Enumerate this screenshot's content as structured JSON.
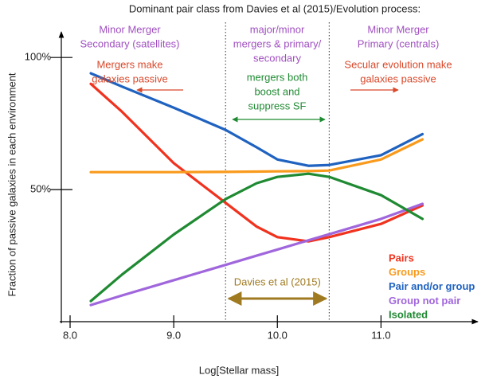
{
  "chart_data": {
    "type": "line",
    "title": "Dominant pair class from Davies et al (2015)/Evolution process:",
    "xlabel": "Log[Stellar mass]",
    "ylabel": "Fraction of passive galaxies in each environment",
    "x": [
      8.2,
      8.5,
      9.0,
      9.5,
      9.8,
      10.0,
      10.3,
      10.5,
      11.0,
      11.4
    ],
    "series": [
      {
        "name": "Pairs",
        "color": "#f0321e",
        "values": [
          90,
          79.5,
          60,
          45,
          36,
          32,
          30.4,
          32,
          37,
          44
        ]
      },
      {
        "name": "Groups",
        "color": "#f99a1c",
        "values": [
          56.6,
          56.6,
          56.6,
          56.7,
          56.8,
          56.9,
          57,
          57.2,
          61.4,
          69
        ]
      },
      {
        "name": "Pair and/or group",
        "color": "#1f62c0",
        "values": [
          94,
          89,
          81,
          72.6,
          66,
          61.4,
          59,
          59.3,
          63,
          71
        ]
      },
      {
        "name": "Group not pair",
        "color": "#a066dc",
        "values": [
          6.3,
          9.9,
          15.7,
          21.5,
          25,
          27.3,
          30.8,
          33.1,
          38.9,
          44.6
        ]
      },
      {
        "name": "Isolated",
        "color": "#1f8a32",
        "values": [
          7.8,
          17.8,
          33,
          46.4,
          52.4,
          54.8,
          56,
          54.8,
          47.9,
          38.9
        ]
      }
    ],
    "xlim": [
      7.9,
      11.85
    ],
    "ylim": [
      0,
      110
    ],
    "xticks": [
      {
        "value": 8,
        "label": "8.0"
      },
      {
        "value": 9,
        "label": "9.0"
      },
      {
        "value": 10,
        "label": "10.0"
      },
      {
        "value": 11,
        "label": "11.0"
      }
    ],
    "yticks": [
      {
        "value": 50,
        "label": "50%"
      },
      {
        "value": 100,
        "label": "100%"
      }
    ],
    "dividers": [
      9.5,
      10.5
    ],
    "regions": [
      {
        "heading": [
          "Minor Merger",
          "Secondary (satellites)"
        ],
        "heading_color": "#a050c0",
        "note": [
          "Mergers make",
          "galaxies passive"
        ],
        "note_color": "#d9482a"
      },
      {
        "heading": [
          "major/minor",
          "mergers & primary/",
          "secondary"
        ],
        "heading_color": "#a050c0",
        "note": [
          "mergers both",
          "boost and",
          "suppress SF"
        ],
        "note_color": "#1f8a32"
      },
      {
        "heading": [
          "Minor Merger",
          "Primary (centrals)"
        ],
        "heading_color": "#a050c0",
        "note": [
          "Secular evolution make",
          "galaxies passive"
        ],
        "note_color": "#d9482a"
      }
    ],
    "span_label": "Davies et al (2015)",
    "span_color": "#a07a20"
  }
}
